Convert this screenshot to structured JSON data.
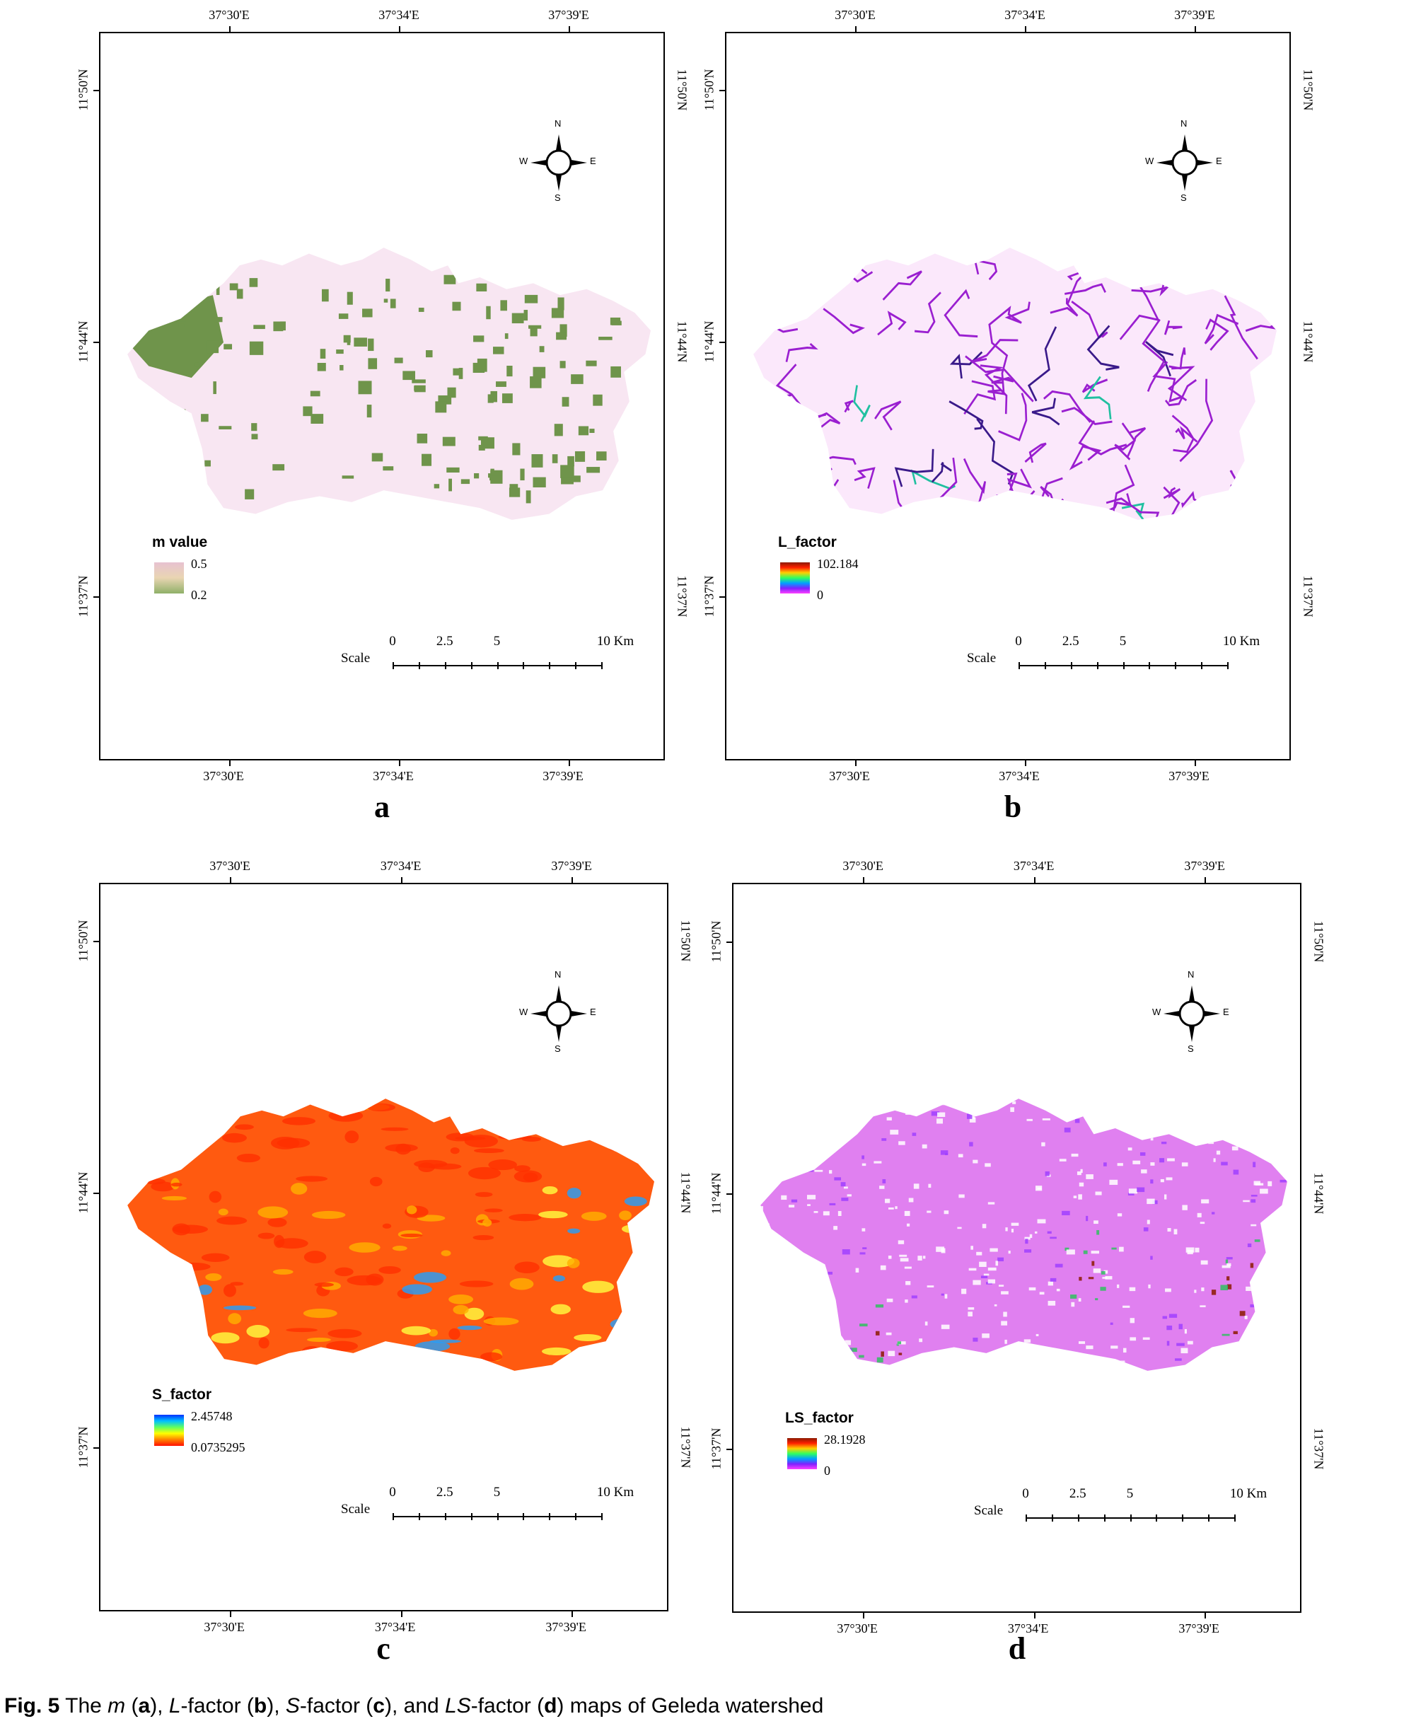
{
  "panels": [
    {
      "id": "a",
      "letter": "a",
      "top_coords": [
        "37°30'E",
        "37°34'E",
        "37°39'E"
      ],
      "bottom_coords": [
        "37°30'E",
        "37°34'E",
        "37°39'E"
      ],
      "left_coords": [
        "11°50'N",
        "11°44'N",
        "11°37'N"
      ],
      "right_coords": [
        "11°50'N",
        "11°44'N",
        "11°37'N"
      ],
      "legend": {
        "title": "m value",
        "max": "0.5",
        "min": "0.2",
        "colors": [
          "#e7c2d1",
          "#e9d5b2",
          "#8fb068"
        ]
      },
      "compass": {
        "n": "N",
        "s": "S",
        "e": "E",
        "w": "W"
      },
      "scale": {
        "label": "Scale",
        "ticks": [
          "0",
          "2.5",
          "5",
          "10 Km"
        ]
      },
      "map_colors": {
        "base": "#f8e6f2",
        "patch": "#6f944b"
      }
    },
    {
      "id": "b",
      "letter": "b",
      "top_coords": [
        "37°30'E",
        "37°34'E",
        "37°39'E"
      ],
      "bottom_coords": [
        "37°30'E",
        "37°34'E",
        "37°39'E"
      ],
      "left_coords": [
        "11°50'N",
        "11°44'N",
        "11°37'N"
      ],
      "right_coords": [
        "11°50'N",
        "11°44'N",
        "11°37'N"
      ],
      "legend": {
        "title": "L_factor",
        "max": "102.184",
        "min": "0",
        "colors": [
          "#8b1a00",
          "#ff2000",
          "#ffd000",
          "#30ff60",
          "#00a0ff",
          "#8020ff",
          "#ff40ff"
        ]
      },
      "compass": {
        "n": "N",
        "s": "S",
        "e": "E",
        "w": "W"
      },
      "scale": {
        "label": "Scale",
        "ticks": [
          "0",
          "2.5",
          "5",
          "10 Km"
        ]
      },
      "map_colors": {
        "base": "#fbe8fb",
        "streams": "#9a1fd0",
        "main": "#3a1a8a"
      }
    },
    {
      "id": "c",
      "letter": "c",
      "top_coords": [
        "37°30'E",
        "37°34'E",
        "37°39'E"
      ],
      "bottom_coords": [
        "37°30'E",
        "37°34'E",
        "37°39'E"
      ],
      "left_coords": [
        "11°50'N",
        "11°44'N",
        "11°37'N"
      ],
      "right_coords": [
        "11°50'N",
        "11°44'N",
        "11°37'N"
      ],
      "legend": {
        "title": "S_factor",
        "max": "2.45748",
        "min": "0.0735295",
        "colors": [
          "#0030ff",
          "#00c0ff",
          "#60ff60",
          "#ffff00",
          "#ff8000",
          "#ff1000"
        ]
      },
      "compass": {
        "n": "N",
        "s": "S",
        "e": "E",
        "w": "W"
      },
      "scale": {
        "label": "Scale",
        "ticks": [
          "0",
          "2.5",
          "5",
          "10 Km"
        ]
      },
      "map_colors": {
        "base": "#ff5a10",
        "mid": "#ffb000",
        "low": "#20a0ff"
      }
    },
    {
      "id": "d",
      "letter": "d",
      "top_coords": [
        "37°30'E",
        "37°34'E",
        "37°39'E"
      ],
      "bottom_coords": [
        "37°30'E",
        "37°34'E",
        "37°39'E"
      ],
      "left_coords": [
        "11°50'N",
        "11°44'N",
        "11°37'N"
      ],
      "right_coords": [
        "11°50'N",
        "11°44'N",
        "11°37'N"
      ],
      "legend": {
        "title": "LS_factor",
        "max": "28.1928",
        "min": "0",
        "colors": [
          "#8b1a00",
          "#ff2000",
          "#ffd000",
          "#30ff60",
          "#00a0ff",
          "#8020ff",
          "#ff40ff"
        ]
      },
      "compass": {
        "n": "N",
        "s": "S",
        "e": "E",
        "w": "W"
      },
      "scale": {
        "label": "Scale",
        "ticks": [
          "0",
          "2.5",
          "5",
          "10 Km"
        ]
      },
      "map_colors": {
        "base": "#e080f0",
        "noise": "#ffffff",
        "hot": "#8b1a00",
        "mid": "#30c060"
      }
    }
  ],
  "caption": {
    "fig": "Fig. 5",
    "parts": [
      "The ",
      "m",
      " (",
      "a",
      "), ",
      "L",
      "-factor (",
      "b",
      "), ",
      "S",
      "-factor (",
      "c",
      "), and ",
      "LS",
      "-factor (",
      "d",
      ") maps of Geleda watershed"
    ]
  }
}
